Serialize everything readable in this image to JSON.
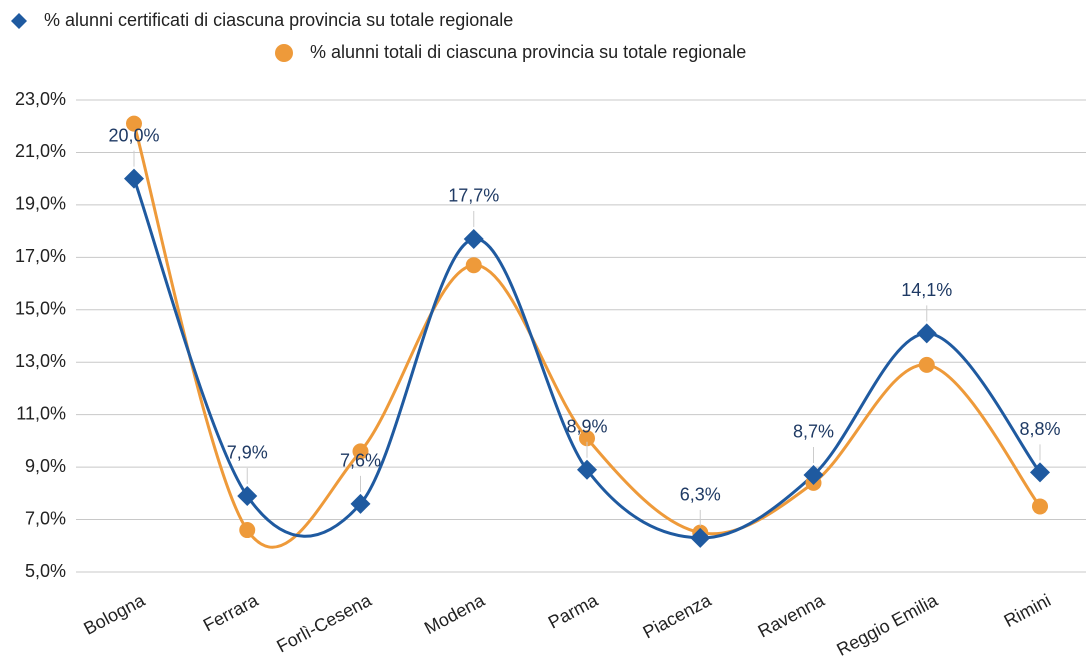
{
  "chart_data": {
    "type": "line",
    "categories": [
      "Bologna",
      "Ferrara",
      "Forlì-Cesena",
      "Modena",
      "Parma",
      "Piacenza",
      "Ravenna",
      "Reggio Emilia",
      "Rimini"
    ],
    "series": [
      {
        "name": "% alunni certificati di ciascuna provincia su totale regionale",
        "color": "#1f5aa0",
        "marker": "diamond",
        "values": [
          20.0,
          7.9,
          7.6,
          17.7,
          8.9,
          6.3,
          8.7,
          14.1,
          8.8
        ],
        "value_labels": [
          "20,0%",
          "7,9%",
          "7,6%",
          "17,7%",
          "8,9%",
          "6,3%",
          "8,7%",
          "14,1%",
          "8,8%"
        ]
      },
      {
        "name": "% alunni totali di ciascuna provincia su totale regionale",
        "color": "#ee9a3a",
        "marker": "circle",
        "values": [
          22.1,
          6.6,
          9.6,
          16.7,
          10.1,
          6.5,
          8.4,
          12.9,
          7.5
        ]
      }
    ],
    "ylim": [
      5,
      23
    ],
    "yticks": [
      {
        "value": 5,
        "label": "5,0%"
      },
      {
        "value": 7,
        "label": "7,0%"
      },
      {
        "value": 9,
        "label": "9,0%"
      },
      {
        "value": 11,
        "label": "11,0%"
      },
      {
        "value": 13,
        "label": "13,0%"
      },
      {
        "value": 15,
        "label": "15,0%"
      },
      {
        "value": 17,
        "label": "17,0%"
      },
      {
        "value": 19,
        "label": "19,0%"
      },
      {
        "value": 21,
        "label": "21,0%"
      },
      {
        "value": 23,
        "label": "23,0%"
      }
    ],
    "grid": true
  }
}
